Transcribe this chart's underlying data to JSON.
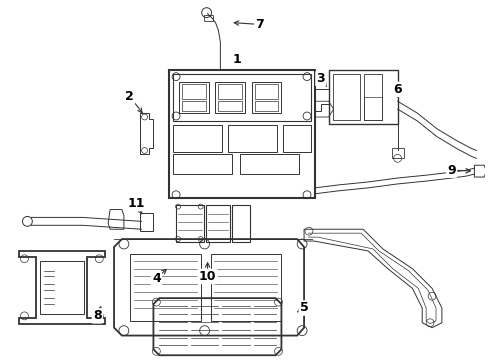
{
  "background_color": "#ffffff",
  "line_color": "#333333",
  "label_color": "#000000",
  "lw_main": 1.3,
  "lw_thin": 0.7,
  "lw_detail": 0.5
}
